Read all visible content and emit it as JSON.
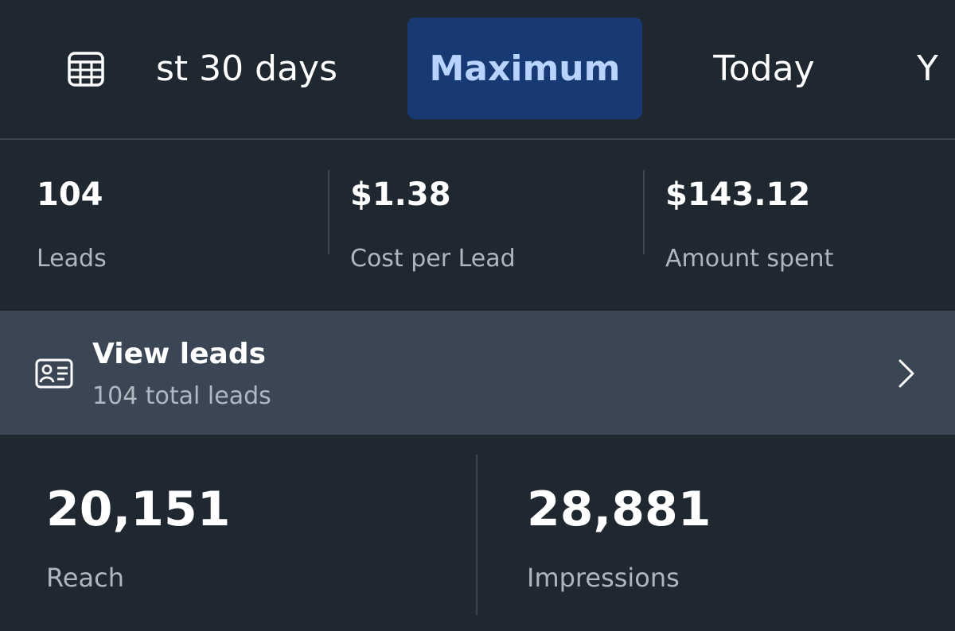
{
  "date_tabs": {
    "items": [
      {
        "label": "st 30 days"
      },
      {
        "label": "Maximum",
        "selected": true
      },
      {
        "label": "Today"
      },
      {
        "label": "Y"
      }
    ],
    "icon": "calendar-table-icon",
    "accent": "#173a74",
    "accent_text": "#b8d3ff"
  },
  "summary": {
    "leads": {
      "value": "104",
      "label": "Leads"
    },
    "cost_per_lead": {
      "value": "$1.38",
      "label": "Cost per Lead"
    },
    "amount_spent": {
      "value": "$143.12",
      "label": "Amount spent"
    }
  },
  "view_leads": {
    "title": "View leads",
    "subtitle": "104 total leads",
    "icon": "contact-card-icon",
    "chevron": "chevron-right-icon"
  },
  "reach": {
    "value": "20,151",
    "label": "Reach"
  },
  "impressions": {
    "value": "28,881",
    "label": "Impressions"
  },
  "colors": {
    "background": "#1f2831",
    "row_highlight": "#3a4654",
    "secondary_text": "#aeb6bf"
  }
}
